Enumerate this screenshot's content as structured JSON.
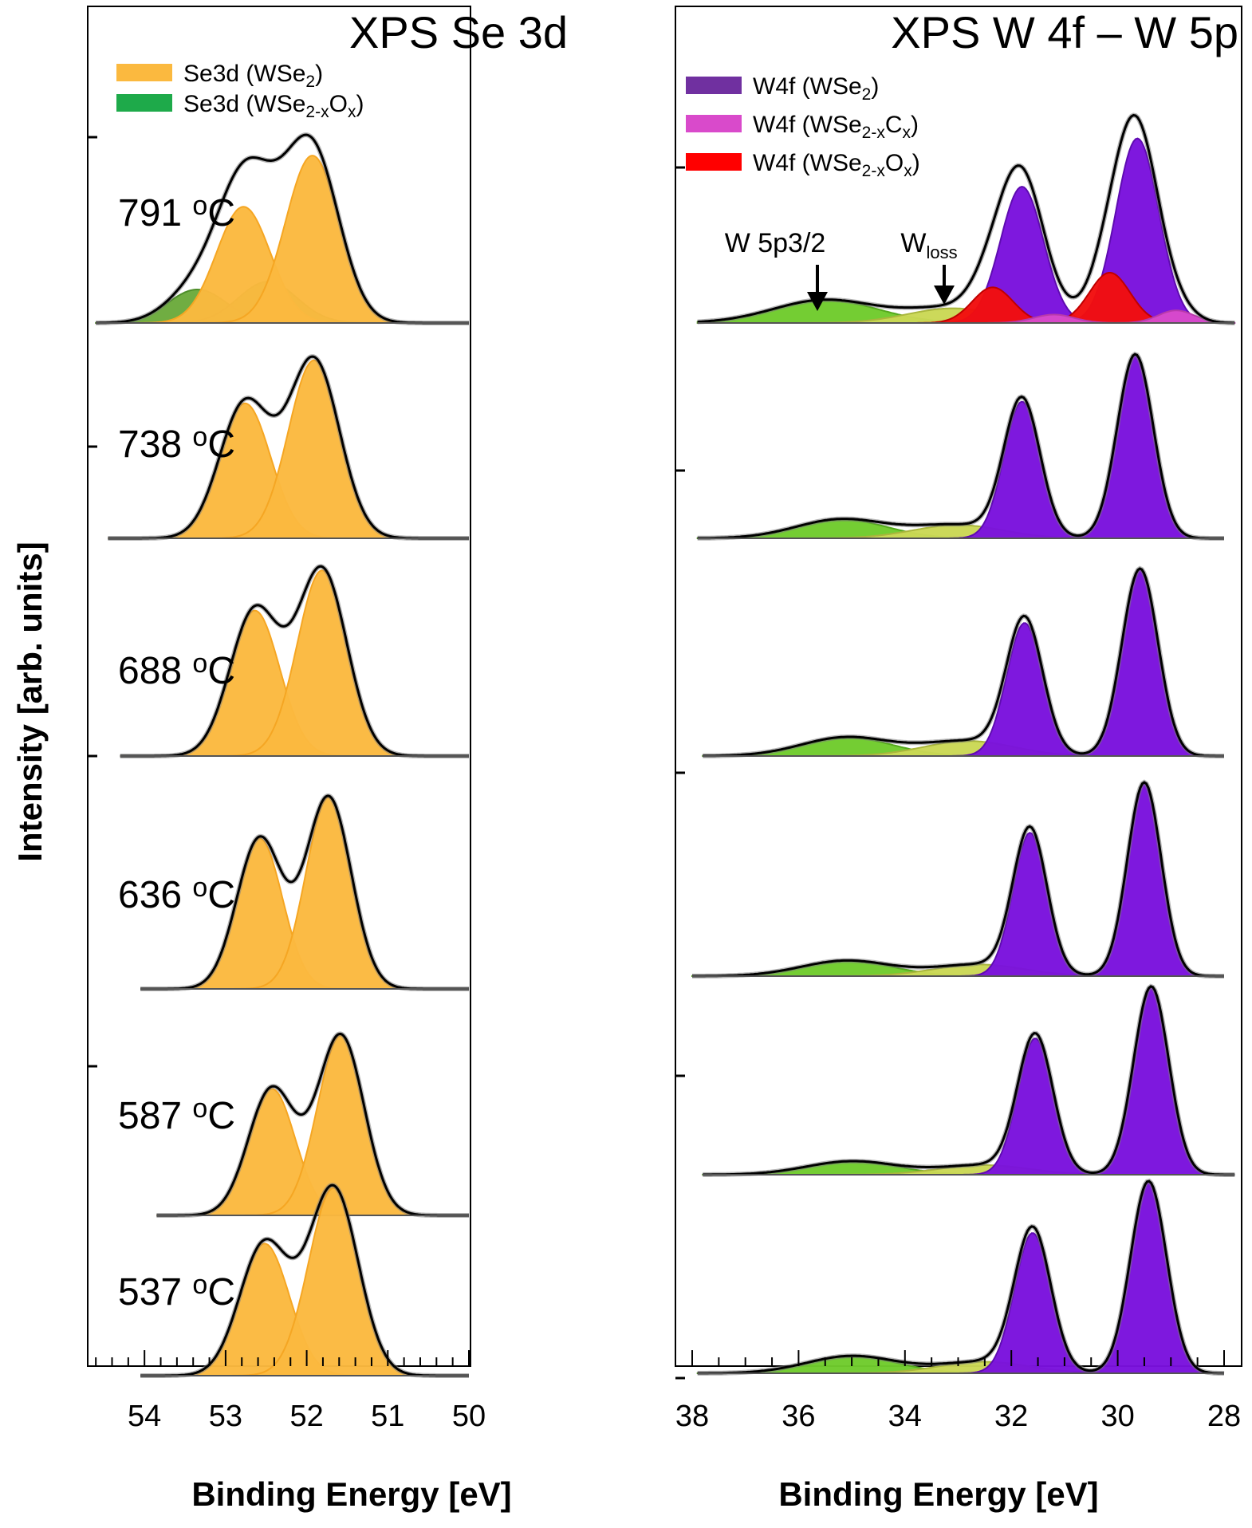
{
  "figure": {
    "y_axis_label": "Intensity [arb. units]",
    "colors": {
      "wse2_orange": "#FBB93F",
      "oxide_green": "#6BAA3C",
      "w4f_purple": "#7A11DD",
      "carbide_pink": "#D94ACB",
      "oxide_red": "#F20E0E",
      "w5p_green": "#6FCB2C",
      "wloss_yellow": "#CAD855",
      "envelope": "#000000"
    }
  },
  "panels": [
    {
      "title": "XPS Se 3d",
      "legend": [
        {
          "base": "Se3d (WSe",
          "sub": "2",
          "tail": ")",
          "color": "#FBB93F"
        },
        {
          "base": "Se3d (WSe",
          "sub": "2-x",
          "mid": "O",
          "sub2": "x",
          "tail": ")",
          "color": "#1EAA4A"
        }
      ]
    },
    {
      "title": "XPS W 4f – W 5p",
      "legend": [
        {
          "base": "W4f (WSe",
          "sub": "2",
          "tail": ")",
          "color": "#7030A0"
        },
        {
          "base": "W4f (WSe",
          "sub": "2-x",
          "mid": "C",
          "sub2": "x",
          "tail": ")",
          "color": "#D94ACB"
        },
        {
          "base": "W4f (WSe",
          "sub": "2-x",
          "mid": "O",
          "sub2": "x",
          "tail": ")",
          "color": "#FF0000"
        }
      ],
      "annotations": {
        "w5p": "W 5p3/2",
        "wloss_base": "W",
        "wloss_sub": "loss"
      }
    }
  ],
  "chart_data": [
    {
      "type": "area",
      "title": "XPS Se 3d",
      "xlabel": "Binding Energy [eV]",
      "ylabel": "Intensity [arb. units]",
      "x_reversed": true,
      "xlim": [
        54.7,
        50
      ],
      "xticks": [
        54,
        53,
        52,
        51,
        50
      ],
      "series_names": [
        "Se3d (WSe2)",
        "Se3d (WSe2-xOx)"
      ],
      "spectra": [
        {
          "temperature": "791 °C",
          "xrange": [
            54.6,
            50.0
          ],
          "envelope_peak": 1.0,
          "components": [
            {
              "series": "Se3d (WSe2)",
              "center": 52.78,
              "height": 0.59,
              "fwhm": 0.78
            },
            {
              "series": "Se3d (WSe2)",
              "center": 51.93,
              "height": 0.85,
              "fwhm": 0.78
            },
            {
              "series": "Se3d (WSe2-xOx)",
              "center": 53.35,
              "height": 0.17,
              "fwhm": 0.85
            },
            {
              "series": "Se3d (WSe2-xOx)",
              "center": 52.48,
              "height": 0.21,
              "fwhm": 0.85
            }
          ]
        },
        {
          "temperature": "738 °C",
          "xrange": [
            54.45,
            50.0
          ],
          "envelope_peak": 1.0,
          "components": [
            {
              "series": "Se3d (WSe2)",
              "center": 52.76,
              "height": 0.72,
              "fwhm": 0.74
            },
            {
              "series": "Se3d (WSe2)",
              "center": 51.91,
              "height": 0.95,
              "fwhm": 0.74
            }
          ]
        },
        {
          "temperature": "688 °C",
          "xrange": [
            54.3,
            50.0
          ],
          "envelope_peak": 1.0,
          "components": [
            {
              "series": "Se3d (WSe2)",
              "center": 52.64,
              "height": 0.76,
              "fwhm": 0.72
            },
            {
              "series": "Se3d (WSe2)",
              "center": 51.81,
              "height": 0.97,
              "fwhm": 0.72
            }
          ]
        },
        {
          "temperature": "636 °C",
          "xrange": [
            54.05,
            50.0
          ],
          "envelope_peak": 1.0,
          "components": [
            {
              "series": "Se3d (WSe2)",
              "center": 52.58,
              "height": 0.77,
              "fwhm": 0.66
            },
            {
              "series": "Se3d (WSe2)",
              "center": 51.73,
              "height": 0.98,
              "fwhm": 0.66
            }
          ]
        },
        {
          "temperature": "587 °C",
          "xrange": [
            53.85,
            50.0
          ],
          "envelope_peak": 1.0,
          "components": [
            {
              "series": "Se3d (WSe2)",
              "center": 52.43,
              "height": 0.69,
              "fwhm": 0.68
            },
            {
              "series": "Se3d (WSe2)",
              "center": 51.58,
              "height": 0.98,
              "fwhm": 0.68
            }
          ]
        },
        {
          "temperature": "537 °C",
          "xrange": [
            54.05,
            50.0
          ],
          "envelope_peak": 1.0,
          "components": [
            {
              "series": "Se3d (WSe2)",
              "center": 52.52,
              "height": 0.69,
              "fwhm": 0.72
            },
            {
              "series": "Se3d (WSe2)",
              "center": 51.67,
              "height": 0.98,
              "fwhm": 0.72
            }
          ]
        }
      ]
    },
    {
      "type": "area",
      "title": "XPS W 4f – W 5p",
      "xlabel": "Binding Energy [eV]",
      "ylabel": "Intensity [arb. units]",
      "x_reversed": true,
      "xlim": [
        38.3,
        27.7
      ],
      "xticks": [
        38,
        36,
        34,
        32,
        30,
        28
      ],
      "series_names": [
        "W4f (WSe2)",
        "W4f (WSe2-xCx)",
        "W4f (WSe2-xOx)",
        "W 5p3/2",
        "Wloss"
      ],
      "spectra": [
        {
          "temperature": "791 °C",
          "xrange": [
            37.9,
            27.8
          ],
          "envelope_peak": 1.0,
          "components": [
            {
              "series": "W4f (WSe2)",
              "center": 31.8,
              "height": 0.65,
              "fwhm": 0.95
            },
            {
              "series": "W4f (WSe2)",
              "center": 29.63,
              "height": 0.88,
              "fwhm": 0.95
            },
            {
              "series": "W4f (WSe2-xOx)",
              "center": 32.35,
              "height": 0.17,
              "fwhm": 0.9
            },
            {
              "series": "W4f (WSe2-xOx)",
              "center": 30.15,
              "height": 0.24,
              "fwhm": 0.9
            },
            {
              "series": "W4f (WSe2-xCx)",
              "center": 31.2,
              "height": 0.04,
              "fwhm": 0.9
            },
            {
              "series": "W4f (WSe2-xCx)",
              "center": 28.9,
              "height": 0.06,
              "fwhm": 0.8
            },
            {
              "series": "W 5p3/2",
              "center": 35.5,
              "height": 0.11,
              "fwhm": 2.3
            },
            {
              "series": "Wloss",
              "center": 33.1,
              "height": 0.07,
              "fwhm": 2.0
            }
          ]
        },
        {
          "temperature": "738 °C",
          "xrange": [
            37.9,
            28.0
          ],
          "envelope_peak": 1.0,
          "components": [
            {
              "series": "W4f (WSe2)",
              "center": 31.8,
              "height": 0.72,
              "fwhm": 0.8
            },
            {
              "series": "W4f (WSe2)",
              "center": 29.67,
              "height": 0.97,
              "fwhm": 0.8
            },
            {
              "series": "W 5p3/2",
              "center": 35.2,
              "height": 0.1,
              "fwhm": 2.0
            },
            {
              "series": "Wloss",
              "center": 33.0,
              "height": 0.07,
              "fwhm": 2.0
            }
          ]
        },
        {
          "temperature": "688 °C",
          "xrange": [
            37.8,
            28.0
          ],
          "envelope_peak": 1.0,
          "components": [
            {
              "series": "W4f (WSe2)",
              "center": 31.75,
              "height": 0.71,
              "fwhm": 0.8
            },
            {
              "series": "W4f (WSe2)",
              "center": 29.58,
              "height": 1.0,
              "fwhm": 0.8
            },
            {
              "series": "W 5p3/2",
              "center": 35.1,
              "height": 0.1,
              "fwhm": 2.0
            },
            {
              "series": "Wloss",
              "center": 32.8,
              "height": 0.08,
              "fwhm": 2.0
            }
          ]
        },
        {
          "temperature": "636 °C",
          "xrange": [
            38.0,
            28.0
          ],
          "envelope_peak": 1.0,
          "components": [
            {
              "series": "W4f (WSe2)",
              "center": 31.65,
              "height": 0.74,
              "fwhm": 0.75
            },
            {
              "series": "W4f (WSe2)",
              "center": 29.5,
              "height": 1.0,
              "fwhm": 0.75
            },
            {
              "series": "W 5p3/2",
              "center": 35.1,
              "height": 0.08,
              "fwhm": 2.0
            },
            {
              "series": "Wloss",
              "center": 32.6,
              "height": 0.06,
              "fwhm": 2.0
            }
          ]
        },
        {
          "temperature": "587 °C",
          "xrange": [
            37.8,
            27.8
          ],
          "envelope_peak": 1.0,
          "components": [
            {
              "series": "W4f (WSe2)",
              "center": 31.55,
              "height": 0.71,
              "fwhm": 0.78
            },
            {
              "series": "W4f (WSe2)",
              "center": 29.37,
              "height": 0.98,
              "fwhm": 0.78
            },
            {
              "series": "W 5p3/2",
              "center": 35.0,
              "height": 0.07,
              "fwhm": 2.0
            },
            {
              "series": "Wloss",
              "center": 32.5,
              "height": 0.05,
              "fwhm": 2.0
            }
          ]
        },
        {
          "temperature": "537 °C",
          "xrange": [
            37.9,
            28.0
          ],
          "envelope_peak": 1.0,
          "components": [
            {
              "series": "W4f (WSe2)",
              "center": 31.6,
              "height": 0.73,
              "fwhm": 0.8
            },
            {
              "series": "W4f (WSe2)",
              "center": 29.42,
              "height": 1.0,
              "fwhm": 0.8
            },
            {
              "series": "W 5p3/2",
              "center": 35.0,
              "height": 0.09,
              "fwhm": 2.0
            },
            {
              "series": "Wloss",
              "center": 32.5,
              "height": 0.06,
              "fwhm": 2.0
            }
          ]
        }
      ]
    }
  ]
}
